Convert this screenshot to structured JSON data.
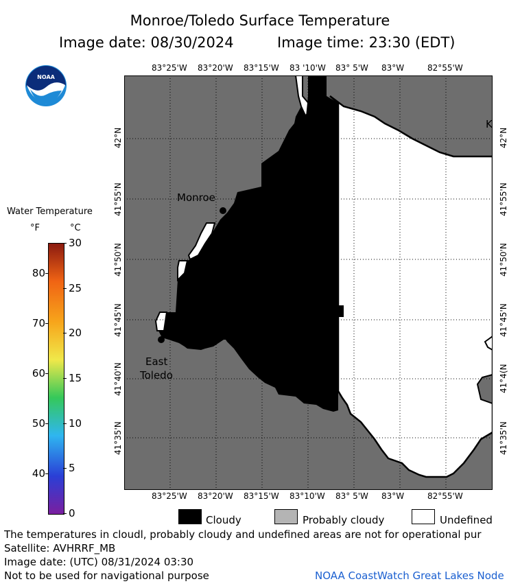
{
  "header": {
    "title": "Monroe/Toledo Surface Temperature",
    "image_date_label": "Image date: 08/30/2024",
    "image_time_label": "Image time: 23:30 (EDT)"
  },
  "logo": {
    "text": "NOAA"
  },
  "colorbar": {
    "title": "Water Temperature",
    "unit_f": "°F",
    "unit_c": "°C",
    "f_ticks": [
      "80",
      "70",
      "60",
      "50",
      "40"
    ],
    "c_ticks": [
      "30",
      "25",
      "20",
      "15",
      "10",
      "5",
      "0"
    ],
    "colors": [
      "#7a1fa0",
      "#2a3fd6",
      "#2fb6f0",
      "#35c85a",
      "#f0e84a",
      "#f7a51b",
      "#f06414",
      "#8b1a10"
    ]
  },
  "map": {
    "lon_labels": [
      "83°25'W",
      "83°20'W",
      "83°15'W",
      "83°10'W",
      "83° 5'W",
      "83°W",
      "82°55'W"
    ],
    "lon_labels_top": [
      "83°25'W",
      "83°20'W",
      "83°15'W",
      "83 '10'W",
      "83° 5'W",
      "83°W",
      "82°55'W"
    ],
    "lat_labels": [
      "42°N",
      "41°55'N",
      "41°50'N",
      "41°45'N",
      "41°40'N",
      "41°35'N"
    ],
    "lat_labels_right": [
      "42°N",
      "41°55'N",
      "41°50'N",
      "41°45'N",
      "41°4(N",
      "41°35'N"
    ],
    "places": [
      {
        "name": "Monroe",
        "lines": [
          "Monroe"
        ]
      },
      {
        "name": "East Toledo",
        "lines": [
          "East",
          "Toledo"
        ]
      }
    ],
    "edge_letter": "K",
    "colors": {
      "land": "#6e6e6e",
      "cloud": "#000000",
      "undefined": "#ffffff",
      "probably_cloudy": "#b4b4b4"
    }
  },
  "legend": {
    "items": [
      {
        "label": "Cloudy",
        "color": "#000000"
      },
      {
        "label": "Probably cloudy",
        "color": "#b4b4b4"
      },
      {
        "label": "Undefined",
        "color": "#ffffff"
      }
    ]
  },
  "footer": {
    "line1": "The temperatures in cloudl, probably cloudy and undefined areas are not for operational pur",
    "line2": "Satellite: AVHRRF_MB",
    "line3": "Image date: (UTC) 08/31/2024  03:30",
    "line4": "Not to be used for navigational purpose",
    "credit": "NOAA CoastWatch Great Lakes Node"
  }
}
